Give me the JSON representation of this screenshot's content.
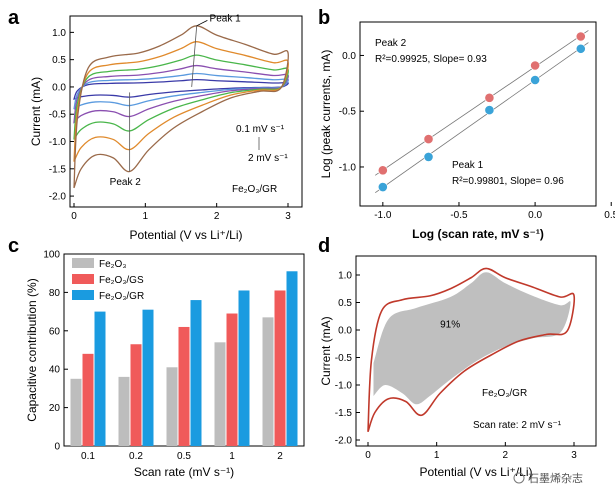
{
  "watermark": "石墨烯杂志",
  "colors": {
    "fe2o3": "#bdbdbd",
    "gs": "#f05a5a",
    "gr": "#1a9be0",
    "peak2": "#e07070",
    "peak1": "#3aa3d8",
    "areaFill": "#bfbfbf",
    "cvOutline": "#c0392b"
  },
  "chart_data": [
    {
      "panel": "a",
      "type": "line",
      "xlabel": "Potential (V vs Li⁺/Li)",
      "ylabel": "Current (mA)",
      "xlim": [
        0,
        3
      ],
      "ylim": [
        -2.2,
        1.3
      ],
      "xticks": [
        0,
        1,
        2,
        3
      ],
      "yticks": [
        -2.0,
        -1.5,
        -1.0,
        -0.5,
        0.0,
        0.5,
        1.0
      ],
      "series": [
        {
          "color": "#3a3aa8",
          "scale": 0.12
        },
        {
          "color": "#5a9adf",
          "scale": 0.22
        },
        {
          "color": "#8a4fb0",
          "scale": 0.35
        },
        {
          "color": "#49b64a",
          "scale": 0.52
        },
        {
          "color": "#e08a2c",
          "scale": 0.74
        },
        {
          "color": "#9a6a4a",
          "scale": 1.0
        }
      ],
      "annotations": {
        "peak1": "Peak 1",
        "peak2": "Peak 2",
        "rate_low": "0.1 mV s⁻¹",
        "rate_high": "2 mV s⁻¹",
        "material": "Fe₂O₃/GR"
      }
    },
    {
      "panel": "b",
      "type": "scatter",
      "xlabel": "Log (scan rate, mV s⁻¹)",
      "ylabel": "Log (peak currents, mA)",
      "xlim": [
        -1.15,
        0.4
      ],
      "ylim": [
        -1.35,
        0.3
      ],
      "xticks": [
        -1.0,
        -0.5,
        0.0,
        0.5
      ],
      "yticks": [
        -1.0,
        -0.5,
        0.0
      ],
      "series": [
        {
          "name": "Peak 2",
          "x": [
            -1.0,
            -0.7,
            -0.3,
            0.0,
            0.3
          ],
          "y": [
            -1.03,
            -0.75,
            -0.38,
            -0.09,
            0.17
          ],
          "fit": "R²=0.99925, Slope= 0.93"
        },
        {
          "name": "Peak 1",
          "x": [
            -1.0,
            -0.7,
            -0.3,
            0.0,
            0.3
          ],
          "y": [
            -1.18,
            -0.91,
            -0.49,
            -0.22,
            0.06
          ],
          "fit": "R²=0.99801, Slope= 0.96"
        }
      ]
    },
    {
      "panel": "c",
      "type": "bar",
      "xlabel": "Scan rate (mV s⁻¹)",
      "ylabel": "Capacitive contribution (%)",
      "ylim": [
        0,
        100
      ],
      "yticks": [
        0,
        20,
        40,
        60,
        80,
        100
      ],
      "categories": [
        "0.1",
        "0.2",
        "0.5",
        "1",
        "2"
      ],
      "series": [
        {
          "name": "Fe₂O₃",
          "values": [
            35,
            36,
            41,
            54,
            67
          ]
        },
        {
          "name": "Fe₂O₃/GS",
          "values": [
            48,
            53,
            62,
            69,
            81
          ]
        },
        {
          "name": "Fe₂O₃/GR",
          "values": [
            70,
            71,
            76,
            81,
            91
          ]
        }
      ]
    },
    {
      "panel": "d",
      "type": "area",
      "xlabel": "Potential (V vs Li⁺/Li)",
      "ylabel": "Current (mA)",
      "xlim": [
        0,
        3
      ],
      "ylim": [
        -2.0,
        1.2
      ],
      "xticks": [
        0,
        1,
        2,
        3
      ],
      "yticks": [
        -2.0,
        -1.5,
        -1.0,
        -0.5,
        0.0,
        0.5,
        1.0
      ],
      "area_label": "91%",
      "material": "Fe₂O₃/GR",
      "condition": "Scan rate: 2 mV s⁻¹"
    }
  ]
}
